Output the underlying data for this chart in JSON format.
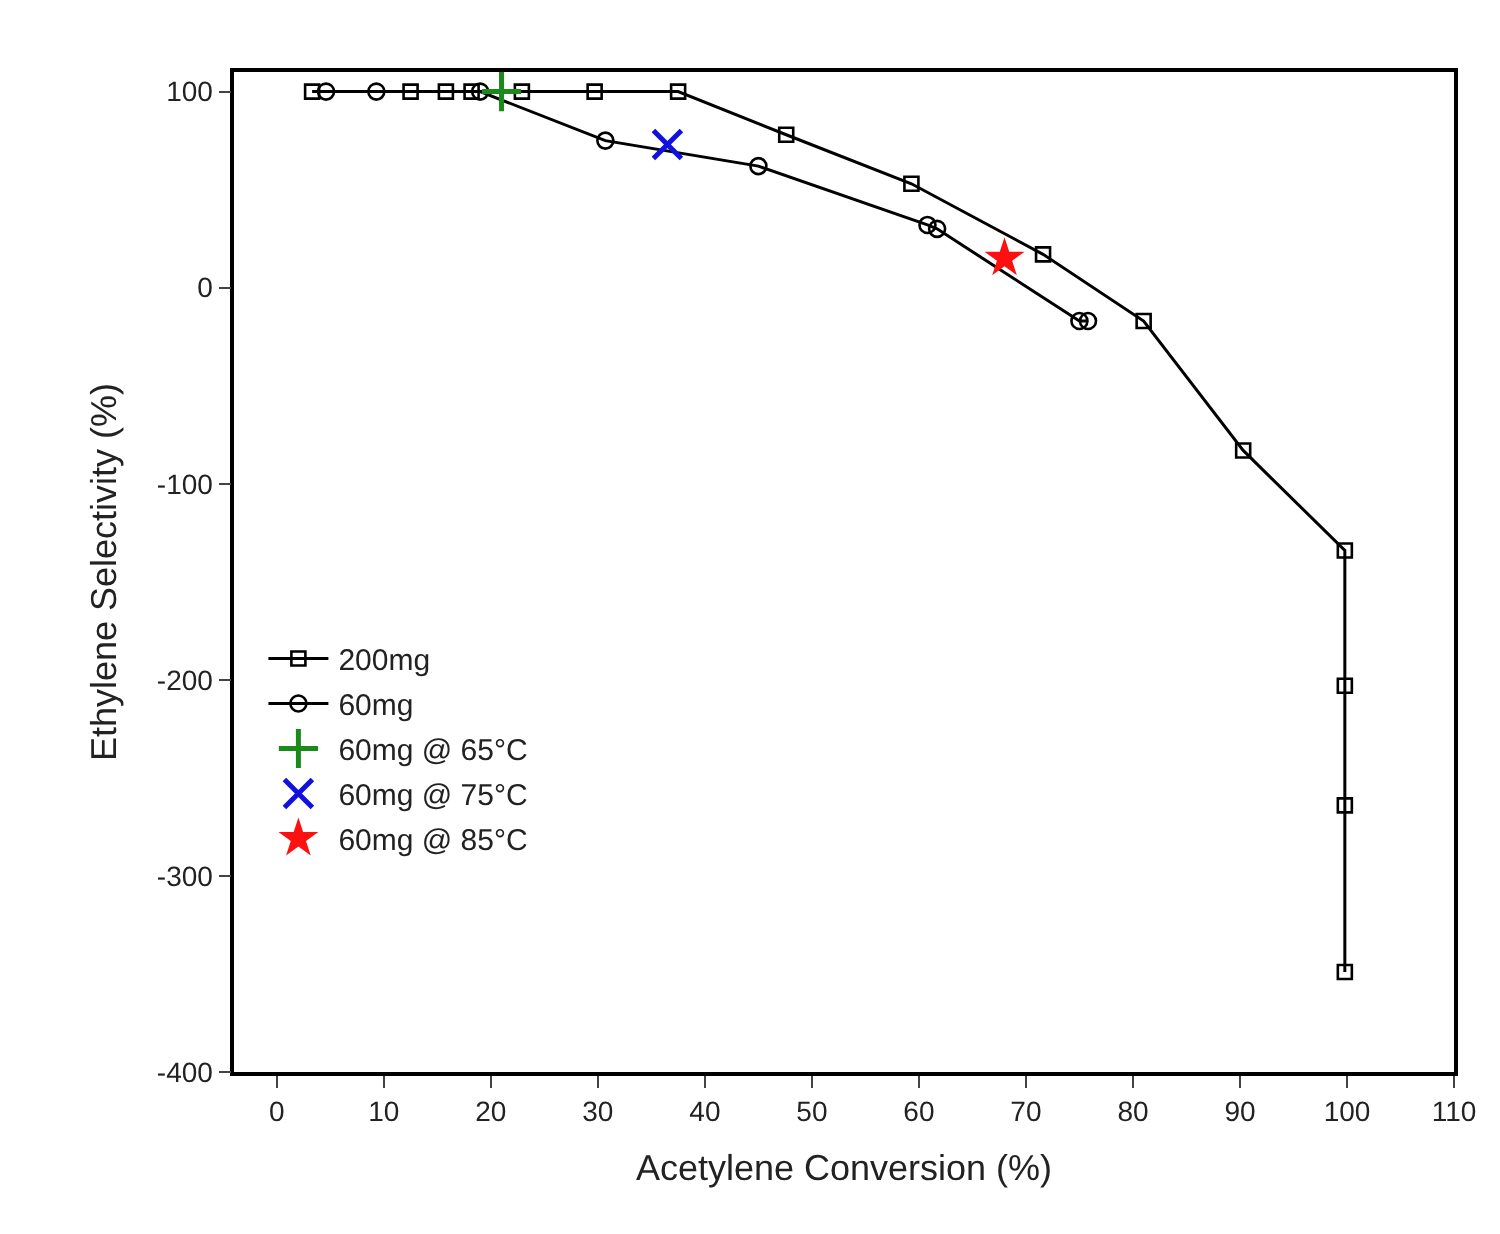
{
  "chart_data": {
    "type": "line",
    "xlabel": "Acetylene Conversion (%)",
    "ylabel": "Ethylene Selectivity (%)",
    "xlim": [
      -4,
      110
    ],
    "xticks": [
      0,
      10,
      20,
      30,
      40,
      50,
      60,
      70,
      80,
      90,
      100,
      110
    ],
    "ylim": [
      -400,
      110
    ],
    "yticks": [
      -400,
      -300,
      -200,
      -100,
      0,
      100
    ],
    "legend": "bottom left",
    "series": [
      {
        "name": "200mg",
        "color": "#000000",
        "marker": "square",
        "x": [
          3.3,
          12.5,
          15.8,
          18.2,
          22.9,
          29.7,
          37.5,
          47.6,
          59.3,
          71.6,
          81,
          90.3,
          99.8,
          99.8,
          99.8,
          99.8
        ],
        "values": [
          100,
          100,
          100,
          100,
          100,
          100,
          100,
          78,
          53,
          17,
          -17,
          -83,
          -134,
          -203,
          -264,
          -349
        ]
      },
      {
        "name": "60mg",
        "color": "#000000",
        "marker": "circle",
        "x": [
          4.6,
          9.3,
          19,
          30.7,
          45,
          60.8,
          61.7,
          75,
          75.8
        ],
        "values": [
          100,
          100,
          100,
          75,
          62,
          32,
          30,
          -17,
          -17
        ]
      },
      {
        "name": "60mg @ 65°C",
        "type": "scatter",
        "color": "#1a8a1a",
        "marker": "cross",
        "x": [
          21
        ],
        "values": [
          100
        ]
      },
      {
        "name": "60mg @ 75°C",
        "type": "scatter",
        "color": "#1010e0",
        "marker": "x",
        "x": [
          36.5
        ],
        "values": [
          73
        ]
      },
      {
        "name": "60mg @ 85°C",
        "type": "scatter",
        "color": "#ff1010",
        "marker": "star",
        "x": [
          68
        ],
        "values": [
          15
        ]
      }
    ]
  }
}
